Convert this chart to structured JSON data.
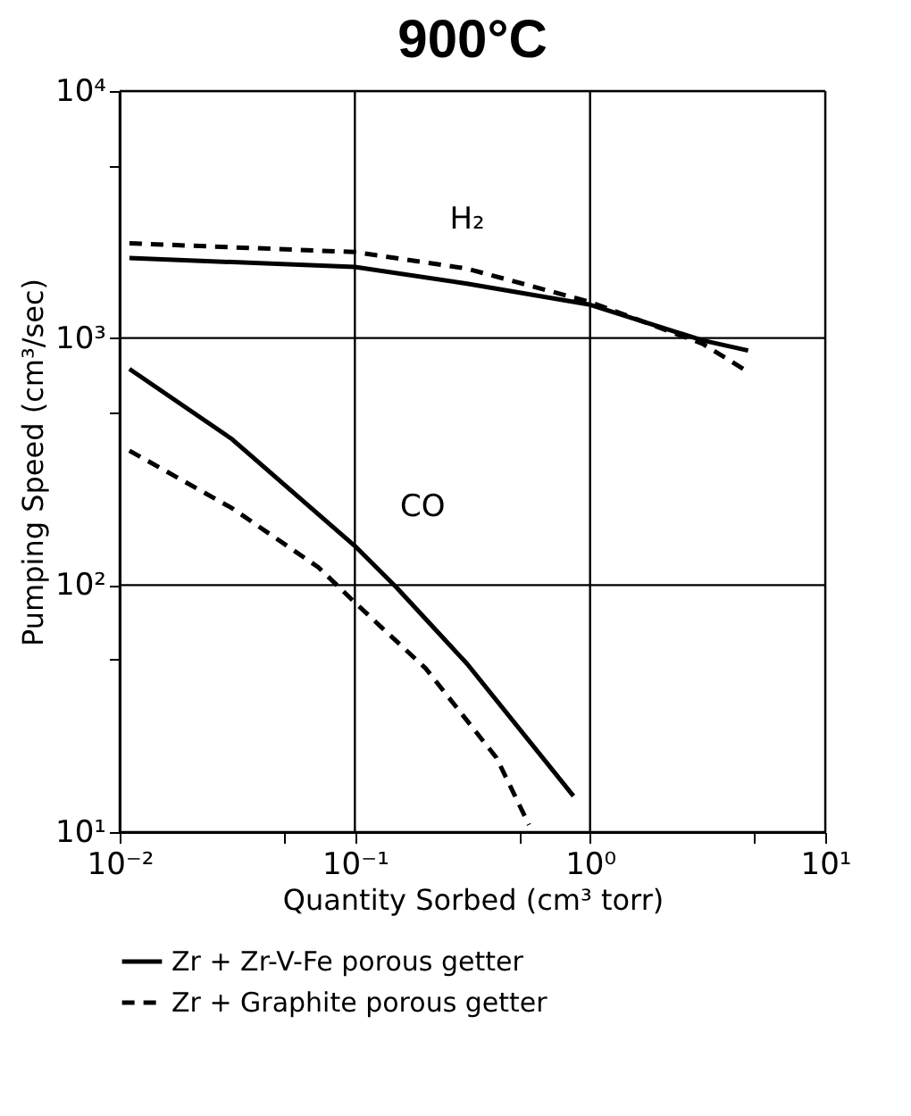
{
  "chart_data": {
    "type": "line",
    "title": "900°C",
    "xlabel": "Quantity Sorbed (cm³ torr)",
    "ylabel": "Pumping Speed (cm³/sec)",
    "log": "xy",
    "grid": true,
    "legend": "bottom",
    "marker": "none",
    "xlim": [
      0.01,
      10
    ],
    "ylim": [
      10,
      10000
    ],
    "xticks": [
      {
        "value": 0.01,
        "label": "10⁻²"
      },
      {
        "value": 0.05,
        "label": null
      },
      {
        "value": 0.1,
        "label": "10⁻¹"
      },
      {
        "value": 0.5,
        "label": null
      },
      {
        "value": 1,
        "label": "10⁰"
      },
      {
        "value": 5,
        "label": null
      },
      {
        "value": 10,
        "label": "10¹"
      }
    ],
    "yticks": [
      {
        "value": 10,
        "label": "10¹"
      },
      {
        "value": 50,
        "label": null
      },
      {
        "value": 100,
        "label": "10²"
      },
      {
        "value": 500,
        "label": null
      },
      {
        "value": 1000,
        "label": "10³"
      },
      {
        "value": 5000,
        "label": null
      },
      {
        "value": 10000,
        "label": "10⁴"
      }
    ],
    "series": [
      {
        "name": "Zr + Zr-V-Fe porous getter",
        "color": "#000000",
        "line_style": "solid",
        "x": [
          0.011,
          0.1,
          0.3,
          1,
          3,
          4.7
        ],
        "values": [
          2110,
          1940,
          1660,
          1365,
          980,
          890
        ]
      },
      {
        "name": "Zr + Graphite porous getter",
        "color": "#000000",
        "line_style": "dashed",
        "x": [
          0.011,
          0.1,
          0.3,
          1,
          3,
          4.7
        ],
        "values": [
          2420,
          2230,
          1910,
          1400,
          950,
          730
        ]
      },
      {
        "color": "#000000",
        "line_style": "solid",
        "x": [
          0.011,
          0.03,
          0.1,
          0.15,
          0.3,
          0.85
        ],
        "values": [
          750,
          390,
          144,
          98,
          48,
          14
        ]
      },
      {
        "color": "#000000",
        "line_style": "dashed",
        "x": [
          0.011,
          0.03,
          0.07,
          0.1,
          0.2,
          0.4,
          0.55
        ],
        "values": [
          350,
          205,
          118,
          85,
          46,
          20,
          10.7
        ]
      }
    ],
    "annotations": [
      "H₂",
      "CO"
    ]
  }
}
